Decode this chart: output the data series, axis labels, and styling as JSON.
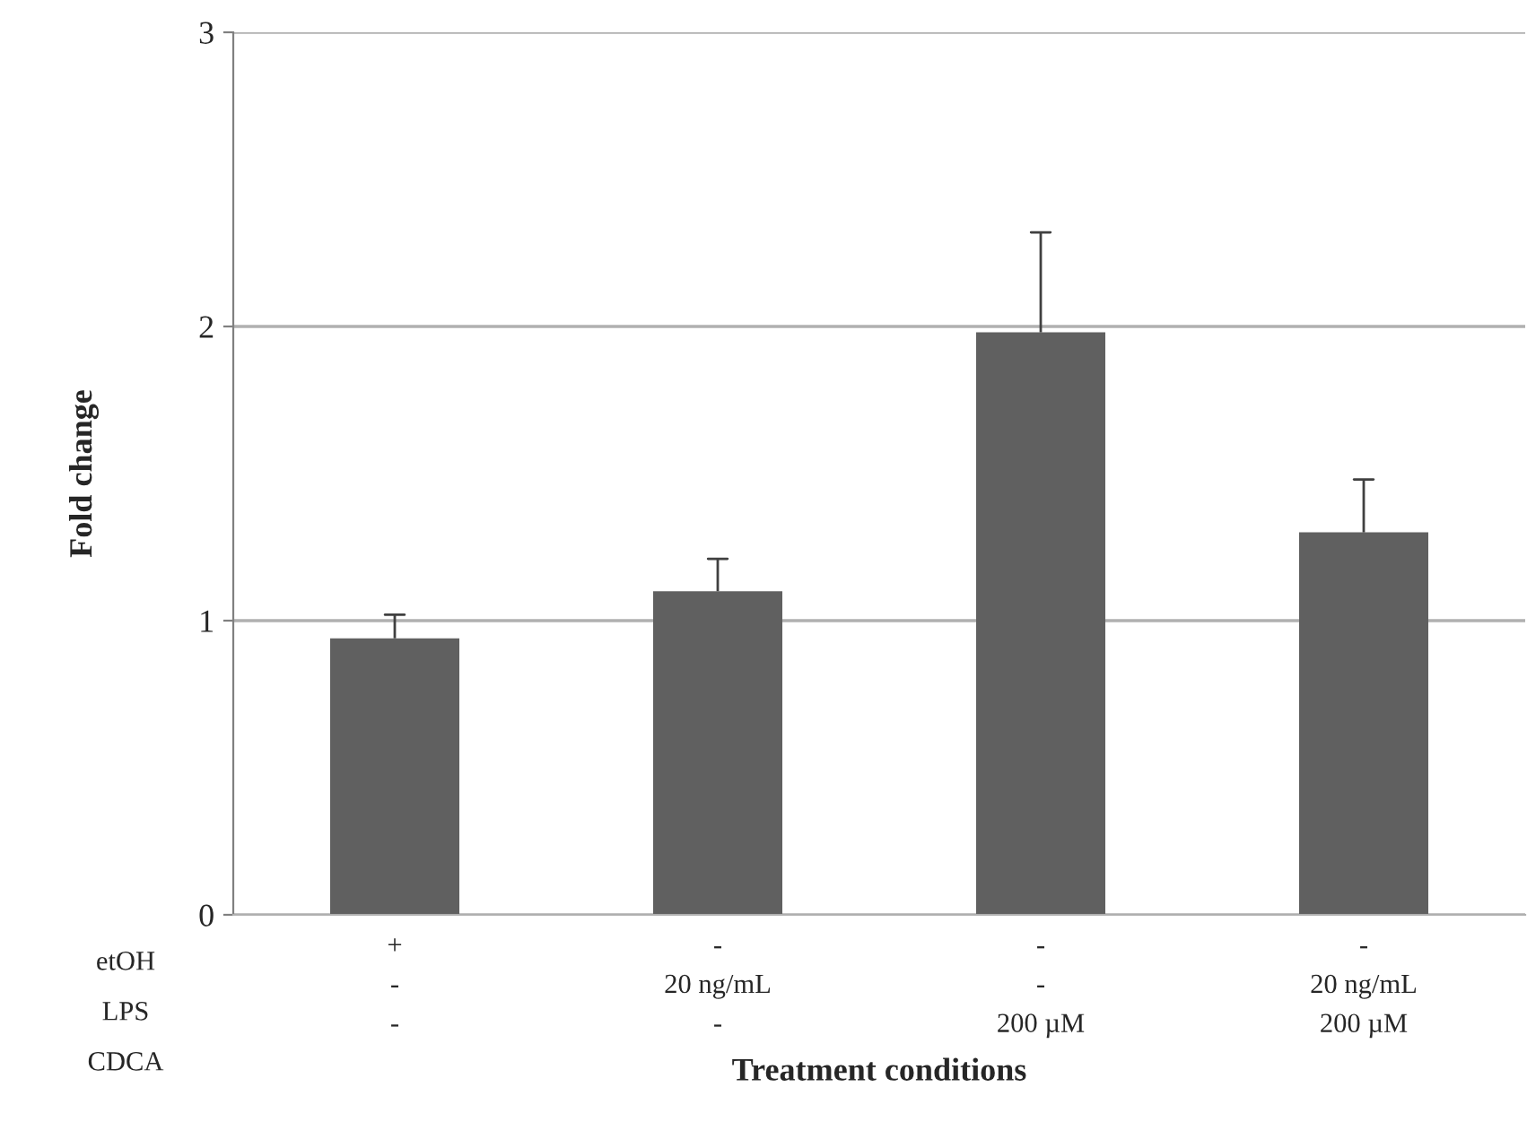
{
  "chart_data": {
    "type": "bar",
    "xlabel": "Treatment conditions",
    "ylabel": "Fold change",
    "categories": [
      "+\n-\n-",
      "-\n20 ng/mL\n-",
      "-\n-\n200 µM",
      "-\n20 ng/mL\n200 µM"
    ],
    "values": [
      0.94,
      1.1,
      1.98,
      1.3
    ],
    "errors": [
      [
        0.94,
        1.02
      ],
      [
        1.1,
        1.21
      ],
      [
        1.98,
        2.32
      ],
      [
        1.3,
        1.48
      ]
    ],
    "color": "#606060",
    "ylim": [
      0,
      3
    ],
    "yticks": [
      0,
      1,
      2,
      3
    ],
    "grid": "y",
    "annotations": [
      "etOH",
      "LPS",
      "CDCA"
    ]
  }
}
